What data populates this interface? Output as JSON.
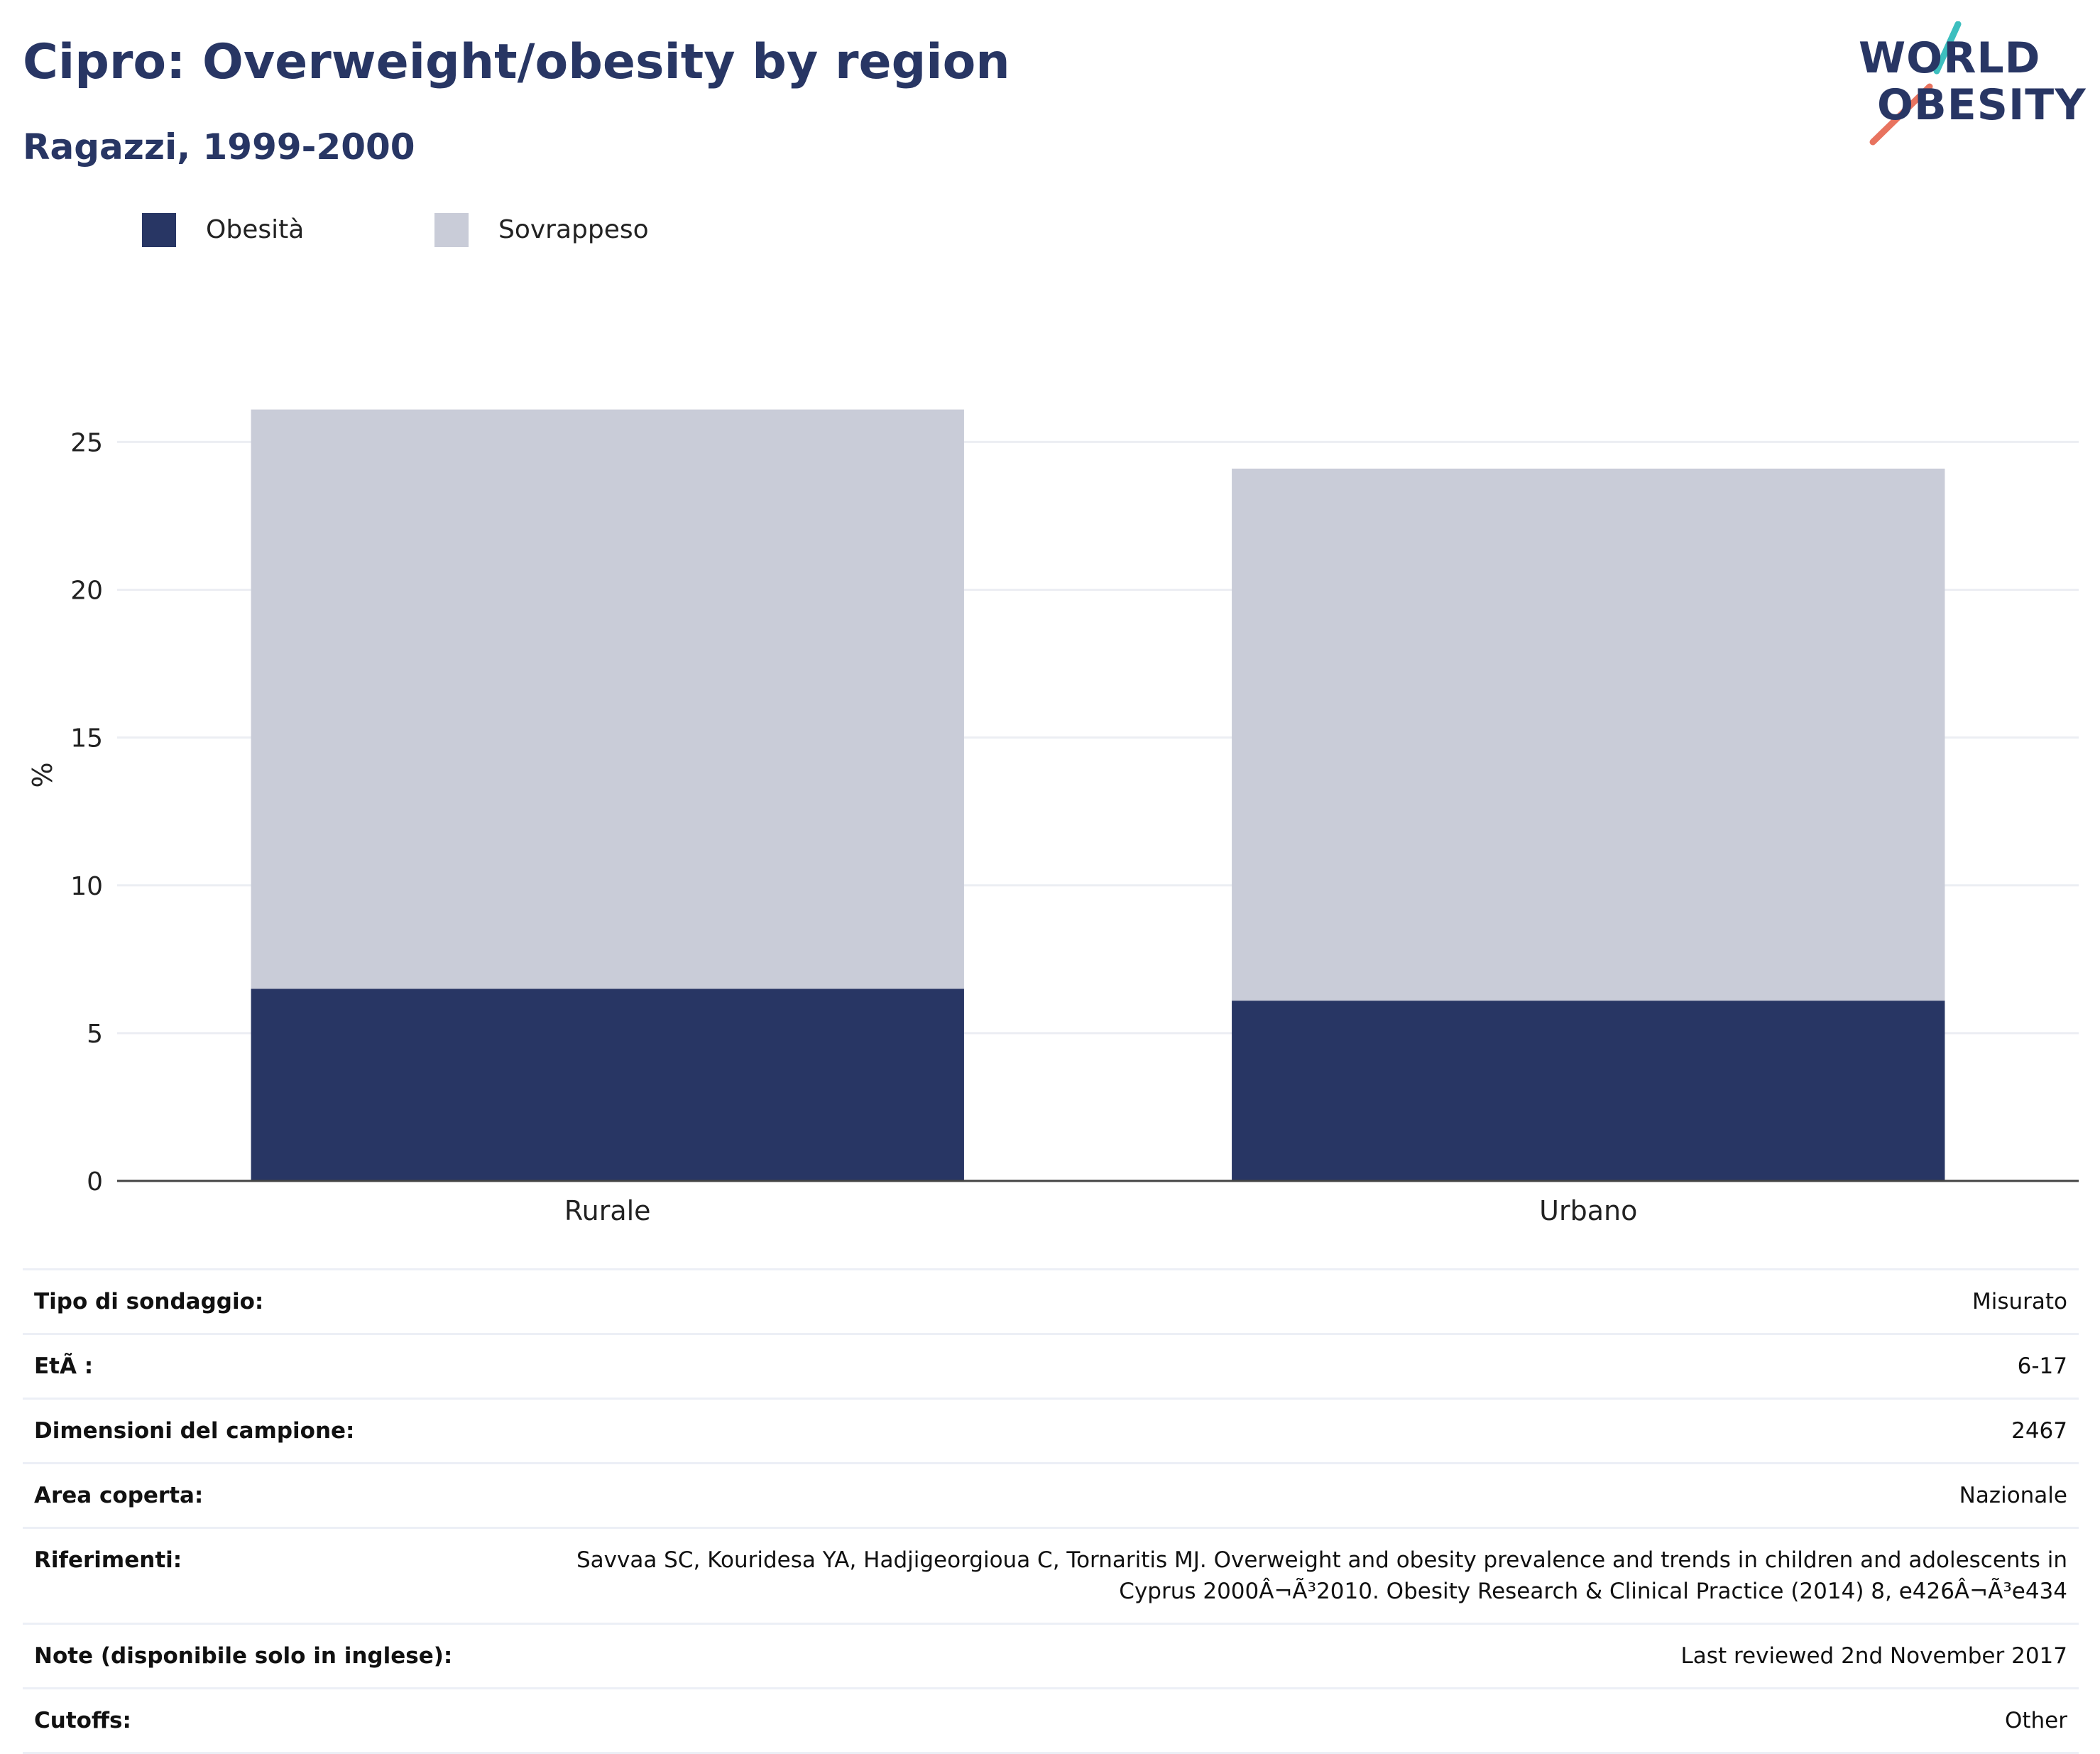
{
  "title": "Cipro: Overweight/obesity by region",
  "subtitle": "Ragazzi, 1999-2000",
  "logo": {
    "line1": "WORLD",
    "line2": "OBESITY"
  },
  "colors": {
    "obesity": "#283664",
    "overweight": "#c9ccd8",
    "text": "#283664",
    "accent_teal": "#3dbfbf",
    "accent_coral": "#e8735f"
  },
  "chart_data": {
    "type": "bar",
    "stacked": true,
    "categories": [
      "Rurale",
      "Urbano"
    ],
    "series": [
      {
        "name": "Obesità",
        "values": [
          6.5,
          6.1
        ]
      },
      {
        "name": "Sovrappeso",
        "values": [
          19.6,
          18.0
        ]
      }
    ],
    "xlabel": "",
    "ylabel": "%",
    "ylim": [
      0,
      26.5
    ],
    "yticks": [
      0,
      5,
      10,
      15,
      20,
      25
    ],
    "grid": true,
    "legend_position": "top-left"
  },
  "info": [
    {
      "label": "Tipo di sondaggio:",
      "value": "Misurato"
    },
    {
      "label": "EtÃ :",
      "value": "6-17"
    },
    {
      "label": "Dimensioni del campione:",
      "value": "2467"
    },
    {
      "label": "Area coperta:",
      "value": "Nazionale"
    },
    {
      "label": "Riferimenti:",
      "value": "Savvaa SC, Kouridesa YA, Hadjigeorgioua C, Tornaritis MJ. Overweight and obesity prevalence and trends in children and adolescents in Cyprus 2000Â¬Ã³2010. Obesity Research & Clinical Practice (2014) 8, e426Â¬Ã³e434"
    },
    {
      "label": "Note (disponibile solo in inglese):",
      "value": "Last reviewed 2nd November 2017"
    },
    {
      "label": "Cutoffs:",
      "value": "Other"
    }
  ]
}
